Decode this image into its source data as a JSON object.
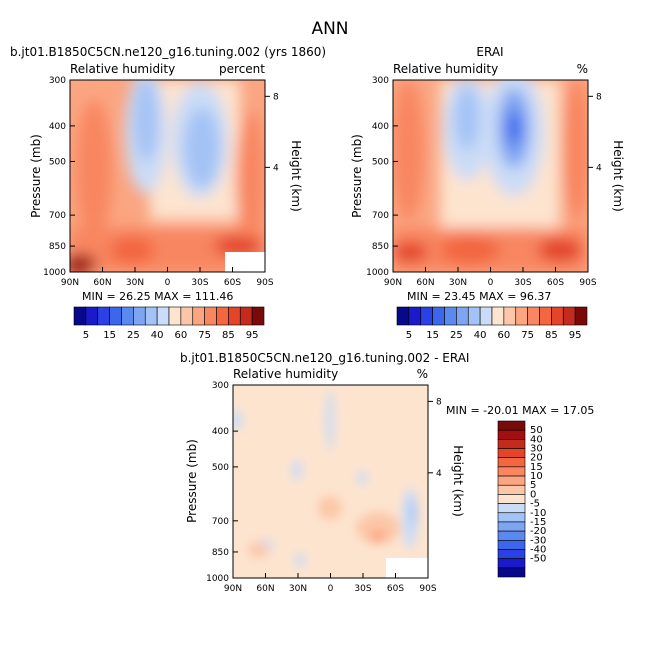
{
  "page_title": "ANN",
  "colors": {
    "ramp": [
      "#08088c",
      "#1a1acb",
      "#2a41e6",
      "#3c66ec",
      "#5a8af0",
      "#7ea4f2",
      "#a3c2f5",
      "#cadcf7",
      "#ffffff",
      "#fde4cf",
      "#fcc7a8",
      "#fba581",
      "#f88660",
      "#f26640",
      "#e3452a",
      "#c52b1d",
      "#9a1810",
      "#7a0a0a"
    ],
    "white_patch": "#ffffff"
  },
  "chart_data": [
    {
      "type": "heatmap",
      "label_tl": "b.jt01.B1850C5CN.ne120_g16.tuning.002 (yrs 1860)",
      "subtitle_left": "Relative humidity",
      "subtitle_right": "percent",
      "x_ticks": [
        "90N",
        "60N",
        "30N",
        "0",
        "30S",
        "60S",
        "90S"
      ],
      "y_ticks": [
        "300",
        "400",
        "500",
        "700",
        "850",
        "1000"
      ],
      "ylabel": "Pressure (mb)",
      "right_label": "Height (km)",
      "right_ticks": [
        "8",
        "4"
      ],
      "stats": "MIN =   26.25   MAX = 111.46",
      "colorbar_labels": [
        "5",
        "15",
        "25",
        "40",
        "60",
        "75",
        "85",
        "95"
      ]
    },
    {
      "type": "heatmap",
      "label_tl": "ERAI",
      "subtitle_left": "Relative humidity",
      "subtitle_right": "%",
      "x_ticks": [
        "90N",
        "60N",
        "30N",
        "0",
        "30S",
        "60S",
        "90S"
      ],
      "y_ticks": [
        "300",
        "400",
        "500",
        "700",
        "850",
        "1000"
      ],
      "ylabel": "Pressure (mb)",
      "right_label": "Height (km)",
      "right_ticks": [
        "8",
        "4"
      ],
      "stats": "MIN =   23.45   MAX =  96.37",
      "colorbar_labels": [
        "5",
        "15",
        "25",
        "40",
        "60",
        "75",
        "85",
        "95"
      ]
    },
    {
      "type": "heatmap",
      "label_tl": "b.jt01.B1850C5CN.ne120_g16.tuning.002 - ERAI",
      "subtitle_left": "Relative humidity",
      "subtitle_right": "%",
      "x_ticks": [
        "90N",
        "60N",
        "30N",
        "0",
        "30S",
        "60S",
        "90S"
      ],
      "y_ticks": [
        "300",
        "400",
        "500",
        "700",
        "850",
        "1000"
      ],
      "ylabel": "Pressure (mb)",
      "right_label": "Height (km)",
      "right_ticks": [
        "8",
        "4"
      ],
      "stats": "MIN = -20.01   MAX =  17.05",
      "colorbar_labels": [
        "50",
        "40",
        "30",
        "20",
        "15",
        "10",
        "5",
        "0",
        "-5",
        "-10",
        "-15",
        "-20",
        "-30",
        "-40",
        "-50"
      ]
    }
  ]
}
